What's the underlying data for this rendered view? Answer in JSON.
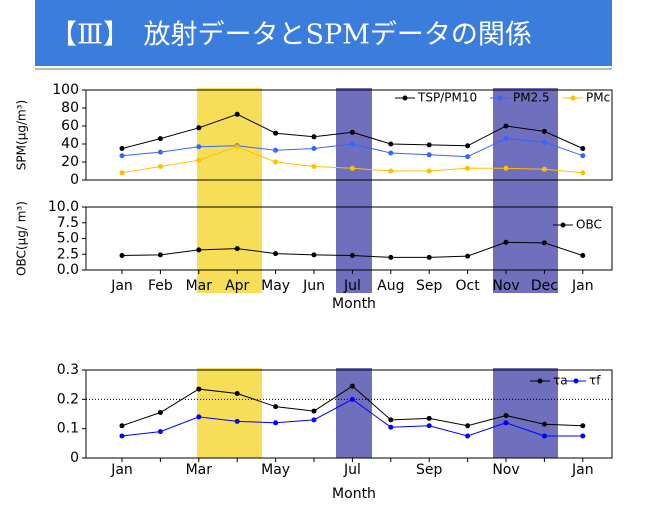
{
  "title": "【Ⅲ】　放射データとSPMデータの関係",
  "chart_data": [
    {
      "type": "line",
      "ylabel": "SPM(μg/m³)",
      "ylim": [
        0,
        100
      ],
      "yticks": [
        0,
        20,
        40,
        60,
        80,
        100
      ],
      "legend": "top-right",
      "series": [
        {
          "name": "TSP/PM10",
          "color": "#000000",
          "values": [
            35,
            46,
            58,
            73,
            52,
            48,
            53,
            40,
            39,
            38,
            60,
            54,
            35
          ]
        },
        {
          "name": "PM2.5",
          "color": "#3366ff",
          "values": [
            27,
            31,
            37,
            38,
            33,
            35,
            40,
            30,
            28,
            26,
            46,
            42,
            27
          ]
        },
        {
          "name": "PMc",
          "color": "#ffc000",
          "values": [
            8,
            15,
            22,
            37,
            20,
            15,
            13,
            10,
            10,
            13,
            13,
            12,
            8
          ]
        }
      ]
    },
    {
      "type": "line",
      "ylabel": "OBC(μg/ m³)",
      "xlabel": "Month",
      "ylim": [
        0,
        10
      ],
      "yticks": [
        {
          "value": 0,
          "label": "0.0"
        },
        {
          "value": 2.5,
          "label": "2.5"
        },
        {
          "value": 5,
          "label": "5.0"
        },
        {
          "value": 7.5,
          "label": "7.5"
        },
        {
          "value": 10,
          "label": "10.0"
        }
      ],
      "legend": "top-right",
      "categories": [
        "Jan",
        "Feb",
        "Mar",
        "Apr",
        "May",
        "Jun",
        "Jul",
        "Aug",
        "Sep",
        "Oct",
        "Nov",
        "Dec",
        "Jan"
      ],
      "series": [
        {
          "name": "OBC",
          "color": "#000000",
          "values": [
            2.3,
            2.4,
            3.2,
            3.4,
            2.6,
            2.4,
            2.3,
            2.0,
            2.0,
            2.2,
            4.4,
            4.3,
            2.3
          ]
        }
      ]
    },
    {
      "type": "line",
      "xlabel": "Month",
      "ylim": [
        0,
        0.3
      ],
      "yticks": [
        0,
        0.1,
        0.2,
        0.3
      ],
      "ref_line": 0.2,
      "legend": "top-right",
      "categories": [
        "Jan",
        null,
        "Mar",
        null,
        "May",
        null,
        "Jul",
        null,
        "Sep",
        null,
        "Nov",
        null,
        "Jan"
      ],
      "series": [
        {
          "name": "τa",
          "color": "#000000",
          "values": [
            0.11,
            0.155,
            0.235,
            0.22,
            0.175,
            0.16,
            0.245,
            0.13,
            0.135,
            0.11,
            0.145,
            0.115,
            0.11
          ]
        },
        {
          "name": "τf",
          "color": "#0000ff",
          "values": [
            0.075,
            0.09,
            0.14,
            0.125,
            0.12,
            0.13,
            0.2,
            0.105,
            0.11,
            0.075,
            0.12,
            0.075,
            0.075
          ]
        }
      ]
    }
  ]
}
